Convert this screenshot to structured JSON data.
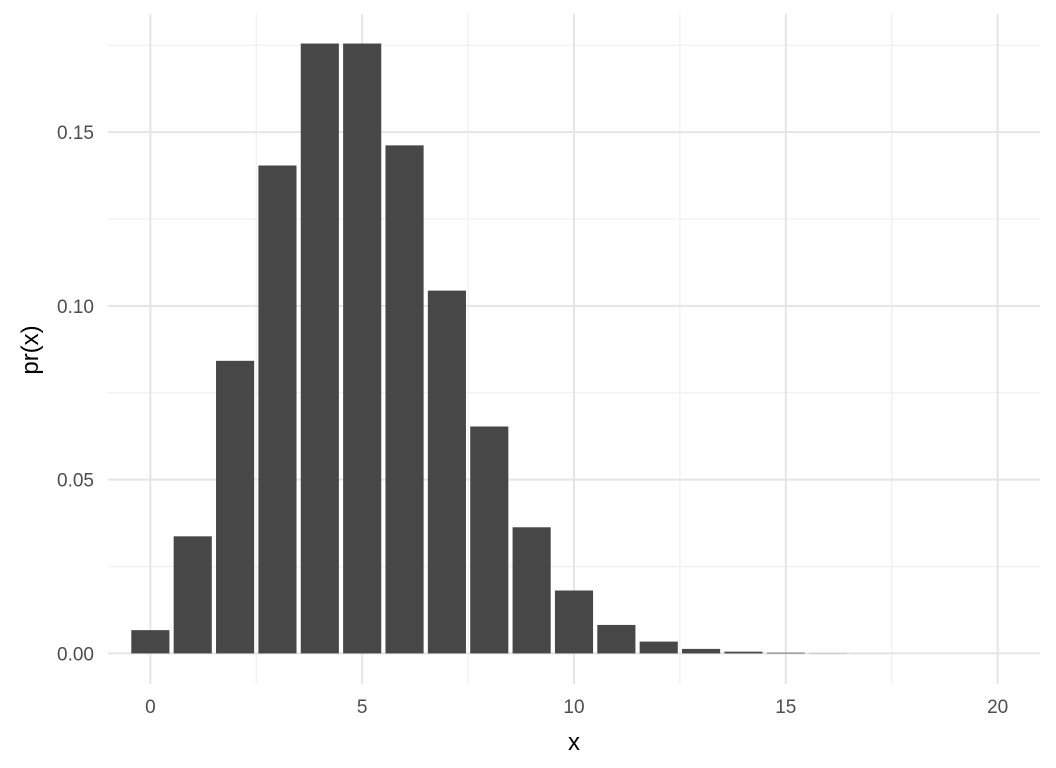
{
  "chart_data": {
    "type": "bar",
    "xlabel": "x",
    "ylabel": "pr(x)",
    "x": [
      0,
      1,
      2,
      3,
      4,
      5,
      6,
      7,
      8,
      9,
      10,
      11,
      12,
      13,
      14,
      15,
      16,
      17,
      18,
      19,
      20
    ],
    "values": [
      0.0067,
      0.0337,
      0.0842,
      0.1404,
      0.1755,
      0.1755,
      0.1462,
      0.1044,
      0.0653,
      0.0363,
      0.0181,
      0.0082,
      0.0034,
      0.0013,
      0.0005,
      0.0002,
      5e-05,
      1e-05,
      0.0,
      0.0,
      0.0
    ],
    "xlim": [
      -1.0,
      21.0
    ],
    "ylim": [
      -0.0088,
      0.184
    ],
    "x_ticks": [
      0,
      5,
      10,
      15,
      20
    ],
    "x_tick_labels": [
      "0",
      "5",
      "10",
      "15",
      "20"
    ],
    "y_ticks": [
      0.0,
      0.05,
      0.1,
      0.15
    ],
    "y_tick_labels": [
      "0.00",
      "0.05",
      "0.10",
      "0.15"
    ],
    "grid": true,
    "bar_color": "#474747",
    "grid_major_color": "#e5e5e5",
    "grid_minor_color": "#f0f0f0"
  }
}
